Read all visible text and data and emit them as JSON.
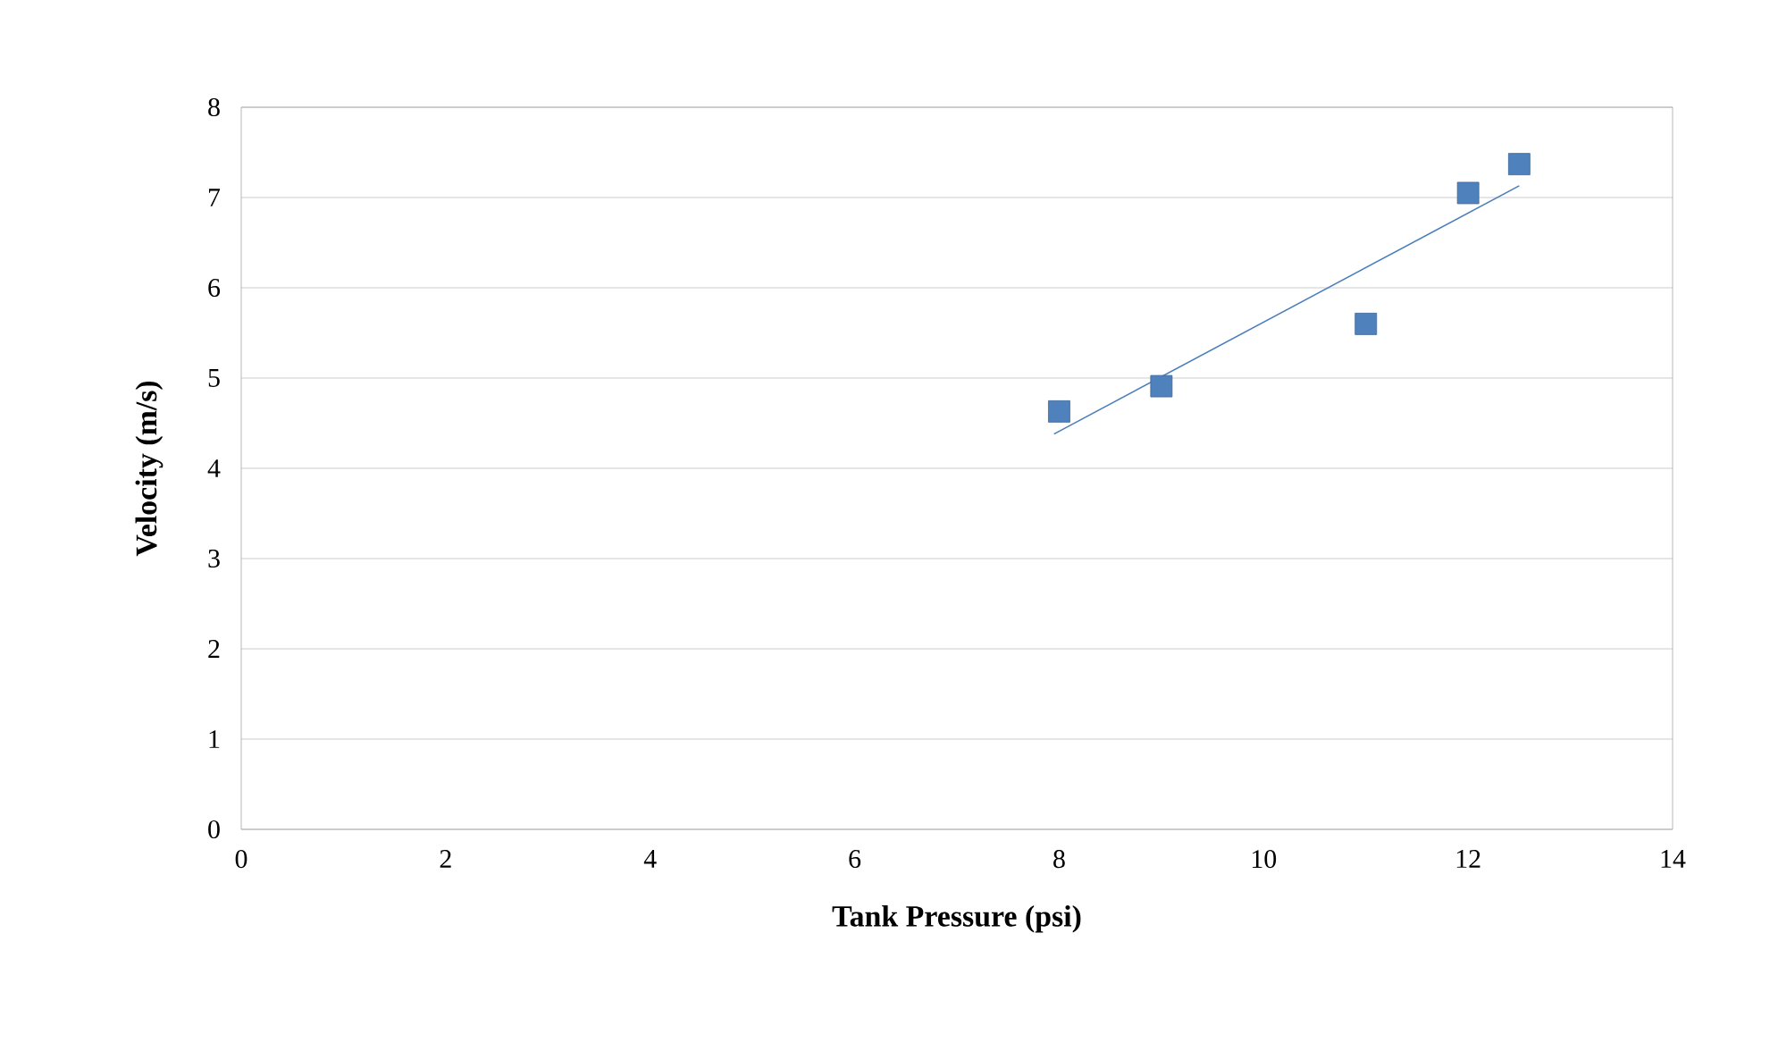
{
  "chart_data": {
    "type": "scatter",
    "xlabel": "Tank Pressure (psi)",
    "ylabel": "Velocity (m/s)",
    "xlim": [
      0,
      14
    ],
    "ylim": [
      0,
      8
    ],
    "xticks": [
      0,
      2,
      4,
      6,
      8,
      10,
      12,
      14
    ],
    "yticks": [
      0,
      1,
      2,
      3,
      4,
      5,
      6,
      7,
      8
    ],
    "grid": "y",
    "marker": "square",
    "series": [
      {
        "color": "#4f81bd",
        "x": [
          8,
          9,
          11,
          12,
          12.5
        ],
        "values": [
          4.63,
          4.91,
          5.6,
          7.05,
          7.37
        ]
      },
      {
        "type": "line",
        "color": "#4a7ebb",
        "marker": "none",
        "x": [
          7.95,
          12.5
        ],
        "values": [
          4.38,
          7.13
        ]
      }
    ]
  }
}
